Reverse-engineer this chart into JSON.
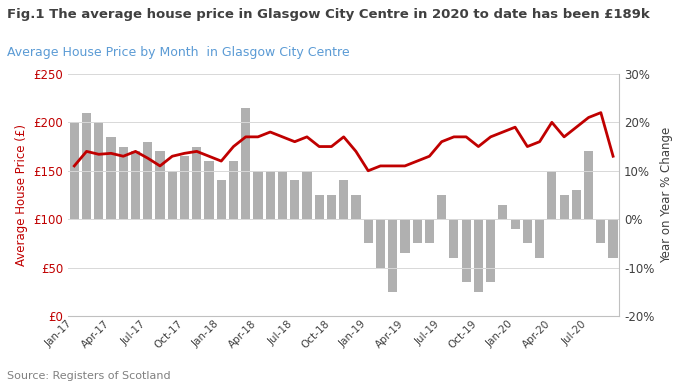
{
  "title_main": "Fig.1 The average house price in Glasgow City Centre in 2020 to date has been £189k",
  "title_sub": "Average House Price by Month  in Glasgow City Centre",
  "source": "Source: Registers of Scotland",
  "ylabel_left": "Average House Price (£)",
  "ylabel_right": "Year on Year % Change",
  "yticks_left_labels": [
    "£0",
    "£50",
    "£100",
    "£150",
    "£200",
    "£250"
  ],
  "yticks_right_labels": [
    "-20%",
    "-10%",
    "0%",
    "10%",
    "20%",
    "30%"
  ],
  "xtick_labels": [
    "Jan-17",
    "Apr-17",
    "Jul-17",
    "Oct-17",
    "Jan-18",
    "Apr-18",
    "Jul-18",
    "Oct-18",
    "Jan-19",
    "Apr-19",
    "Jul-19",
    "Oct-19",
    "Jan-20",
    "Apr-20",
    "Jul-20"
  ],
  "line_color": "#c00000",
  "bar_color": "#b0b0b0",
  "background_color": "#ffffff",
  "title_color": "#404040",
  "subtitle_color": "#5b9bd5",
  "left_axis_color": "#c00000",
  "right_axis_color": "#404040",
  "house_prices": [
    155000,
    170000,
    167000,
    168000,
    165000,
    170000,
    163000,
    155000,
    165000,
    168000,
    170000,
    165000,
    160000,
    175000,
    185000,
    185000,
    190000,
    185000,
    180000,
    185000,
    175000,
    175000,
    185000,
    170000,
    150000,
    155000,
    155000,
    155000,
    160000,
    165000,
    180000,
    185000,
    185000,
    175000,
    185000,
    190000,
    195000,
    175000,
    180000,
    200000,
    185000,
    195000,
    205000,
    210000,
    165000
  ],
  "yoy_changes": [
    20,
    22,
    20,
    17,
    15,
    14,
    16,
    14,
    10,
    13,
    15,
    12,
    8,
    12,
    23,
    10,
    10,
    10,
    8,
    10,
    5,
    5,
    8,
    5,
    -5,
    -10,
    -15,
    -7,
    -5,
    -5,
    5,
    -8,
    -13,
    -15,
    -13,
    3,
    -2,
    -5,
    -8,
    10,
    5,
    6,
    14,
    -5,
    -8
  ],
  "n_months": 45
}
